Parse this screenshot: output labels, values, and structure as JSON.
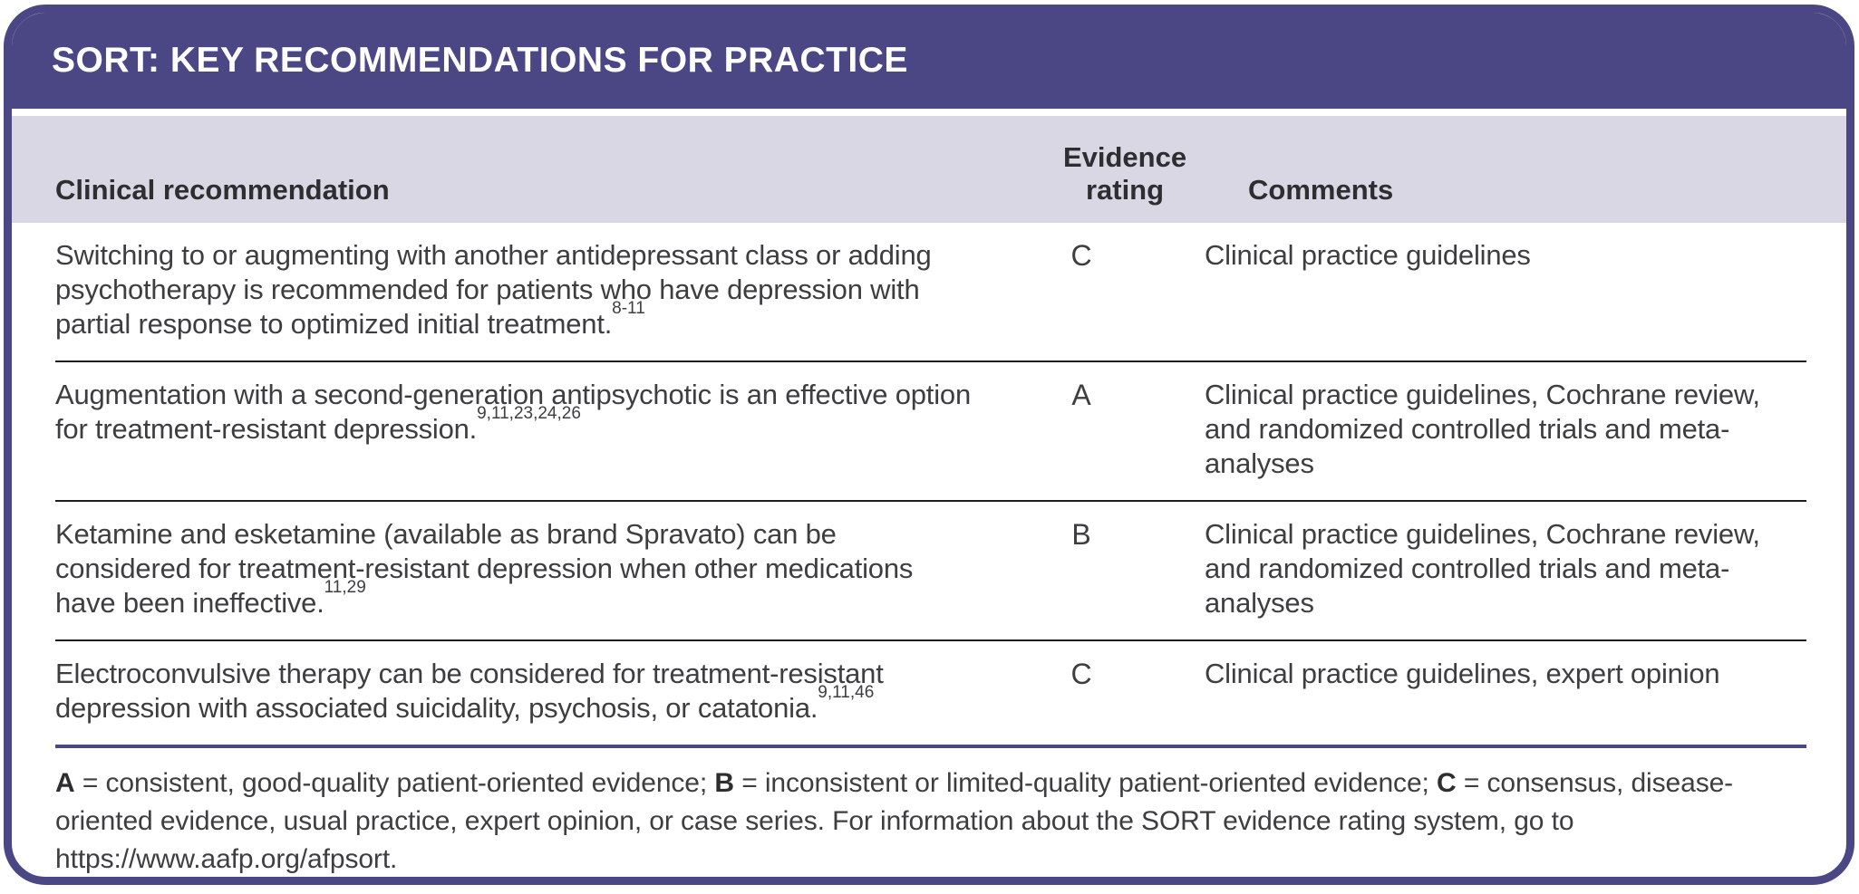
{
  "title": "SORT: KEY RECOMMENDATIONS FOR PRACTICE",
  "colors": {
    "purple": "#4b4784",
    "header_bg": "#dad7e5",
    "body_text": "#3e3d40",
    "divider": "#1d1d1b"
  },
  "table": {
    "columns": {
      "recommendation": "Clinical recommendation",
      "rating": "Evidence rating",
      "comments": "Comments"
    },
    "rows": [
      {
        "recommendation": "Switching to or augmenting with another antidepressant class or adding psychotherapy is recommended for patients who have depression with partial response to optimized initial treatment.",
        "references": "8-11",
        "rating": "C",
        "comments": "Clinical practice guidelines"
      },
      {
        "recommendation": "Augmentation with a second-generation antipsychotic is an effective option for treatment-resistant depression.",
        "references": "9,11,23,24,26",
        "rating": "A",
        "comments": "Clinical practice guidelines, Cochrane review, and randomized controlled trials and meta-analyses"
      },
      {
        "recommendation": "Ketamine and esketamine (available as brand Spravato) can be considered for treatment-resistant depression when other medications have been ineffective.",
        "references": "11,29",
        "rating": "B",
        "comments": "Clinical practice guidelines, Cochrane review, and randomized controlled trials and meta-analyses"
      },
      {
        "recommendation": "Electroconvulsive therapy can be considered for treatment-resistant depression with associated suicidality, psychosis, or catatonia.",
        "references": "9,11,46",
        "rating": "C",
        "comments": "Clinical practice guidelines, expert opinion"
      }
    ]
  },
  "footnote": {
    "segments": [
      {
        "text": "A",
        "bold": true
      },
      {
        "text": " = consistent, good-quality patient-oriented evidence; ",
        "bold": false
      },
      {
        "text": "B",
        "bold": true
      },
      {
        "text": " = inconsistent or limited-quality patient-oriented evidence; ",
        "bold": false
      },
      {
        "text": "C",
        "bold": true
      },
      {
        "text": " = consensus, disease-oriented evidence, usual practice, expert opinion, or case series. For information about the SORT evidence rating system, go to https://www.aafp.org/afpsort.",
        "bold": false
      }
    ]
  }
}
